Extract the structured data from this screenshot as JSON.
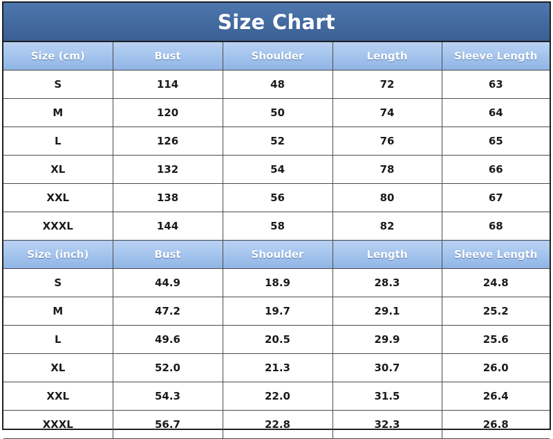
{
  "title": "Size Chart",
  "colors": {
    "title_bar": "#3f6599",
    "header_row": "#a6c4ee",
    "border": "#1f1f1f"
  },
  "cm_table": {
    "headers": [
      "Size (cm)",
      "Bust",
      "Shoulder",
      "Length",
      "Sleeve Length"
    ],
    "rows": [
      [
        "S",
        "114",
        "48",
        "72",
        "63"
      ],
      [
        "M",
        "120",
        "50",
        "74",
        "64"
      ],
      [
        "L",
        "126",
        "52",
        "76",
        "65"
      ],
      [
        "XL",
        "132",
        "54",
        "78",
        "66"
      ],
      [
        "XXL",
        "138",
        "56",
        "80",
        "67"
      ],
      [
        "XXXL",
        "144",
        "58",
        "82",
        "68"
      ]
    ]
  },
  "inch_table": {
    "headers": [
      "Size (inch)",
      "Bust",
      "Shoulder",
      "Length",
      "Sleeve Length"
    ],
    "rows": [
      [
        "S",
        "44.9",
        "18.9",
        "28.3",
        "24.8"
      ],
      [
        "M",
        "47.2",
        "19.7",
        "29.1",
        "25.2"
      ],
      [
        "L",
        "49.6",
        "20.5",
        "29.9",
        "25.6"
      ],
      [
        "XL",
        "52.0",
        "21.3",
        "30.7",
        "26.0"
      ],
      [
        "XXL",
        "54.3",
        "22.0",
        "31.5",
        "26.4"
      ],
      [
        "XXXL",
        "56.7",
        "22.8",
        "32.3",
        "26.8"
      ]
    ]
  }
}
